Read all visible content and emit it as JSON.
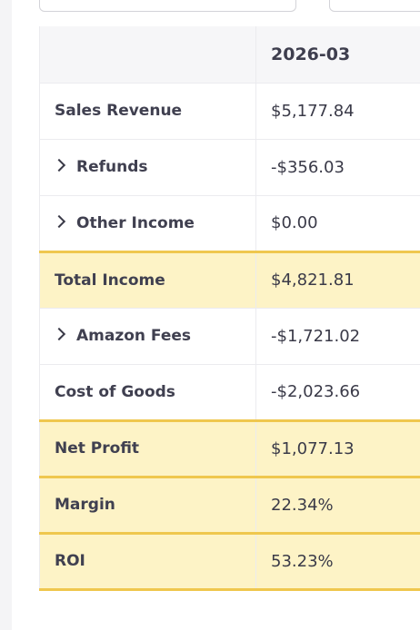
{
  "table": {
    "period_header": "2026-03",
    "rows": [
      {
        "label": "Sales Revenue",
        "value": "$5,177.84"
      },
      {
        "label": "Refunds",
        "value": "-$356.03"
      },
      {
        "label": "Other Income",
        "value": "$0.00"
      },
      {
        "label": "Total Income",
        "value": "$4,821.81"
      },
      {
        "label": "Amazon Fees",
        "value": "-$1,721.02"
      },
      {
        "label": "Cost of Goods",
        "value": "-$2,023.66"
      },
      {
        "label": "Net Profit",
        "value": "$1,077.13"
      },
      {
        "label": "Margin",
        "value": "22.34%"
      },
      {
        "label": "ROI",
        "value": "53.23%"
      }
    ]
  },
  "icons": {
    "expand": "chevron-right-icon"
  },
  "colors": {
    "total_fill": "#fdf3c6",
    "total_border": "#efc74e"
  }
}
